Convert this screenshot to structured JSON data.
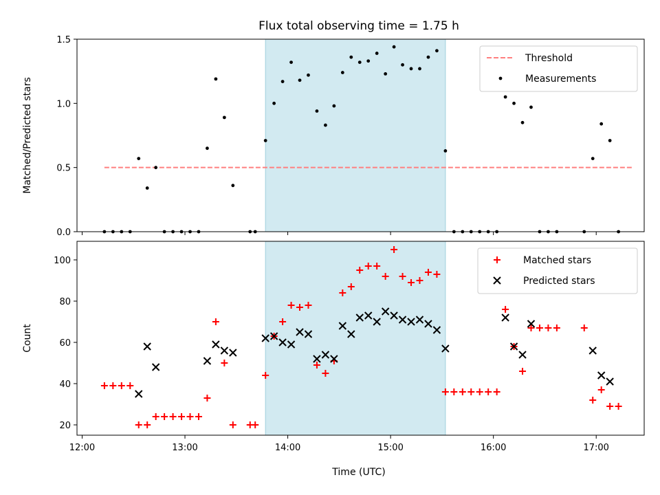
{
  "figure": {
    "title": "Flux total observing time = 1.75 h",
    "xlabel": "Time (UTC)",
    "background": "#ffffff",
    "shade_color": "#add8e6",
    "shade_span": [
      "13:47",
      "15:32"
    ],
    "xlim": [
      "11:57",
      "17:28"
    ],
    "xticks": [
      "12:00",
      "13:00",
      "14:00",
      "15:00",
      "16:00",
      "17:00"
    ]
  },
  "chart_data": [
    {
      "type": "scatter",
      "ylabel": "Matched/Predicted stars",
      "ylim": [
        0,
        1.5
      ],
      "yticks": [
        "0.0",
        "0.5",
        "1.0",
        "1.5"
      ],
      "legend_position": "top-right",
      "series": [
        {
          "name": "Threshold",
          "type": "line",
          "style": "dashed",
          "color": "#ff7f7f",
          "x": [
            "12:13",
            "17:21"
          ],
          "y": [
            0.5,
            0.5
          ]
        },
        {
          "name": "Measurements",
          "type": "scatter",
          "color": "#000000",
          "points": [
            [
              "12:13",
              0.0
            ],
            [
              "12:18",
              0.0
            ],
            [
              "12:23",
              0.0
            ],
            [
              "12:28",
              0.0
            ],
            [
              "12:33",
              0.57
            ],
            [
              "12:38",
              0.34
            ],
            [
              "12:43",
              0.5
            ],
            [
              "12:48",
              0.0
            ],
            [
              "12:53",
              0.0
            ],
            [
              "12:58",
              0.0
            ],
            [
              "13:03",
              0.0
            ],
            [
              "13:08",
              0.0
            ],
            [
              "13:13",
              0.65
            ],
            [
              "13:18",
              1.19
            ],
            [
              "13:23",
              0.89
            ],
            [
              "13:28",
              0.36
            ],
            [
              "13:38",
              0.0
            ],
            [
              "13:41",
              0.0
            ],
            [
              "13:47",
              0.71
            ],
            [
              "13:52",
              1.0
            ],
            [
              "13:57",
              1.17
            ],
            [
              "14:02",
              1.32
            ],
            [
              "14:07",
              1.18
            ],
            [
              "14:12",
              1.22
            ],
            [
              "14:17",
              0.94
            ],
            [
              "14:22",
              0.83
            ],
            [
              "14:27",
              0.98
            ],
            [
              "14:32",
              1.24
            ],
            [
              "14:37",
              1.36
            ],
            [
              "14:42",
              1.32
            ],
            [
              "14:47",
              1.33
            ],
            [
              "14:52",
              1.39
            ],
            [
              "14:57",
              1.23
            ],
            [
              "15:02",
              1.44
            ],
            [
              "15:07",
              1.3
            ],
            [
              "15:12",
              1.27
            ],
            [
              "15:17",
              1.27
            ],
            [
              "15:22",
              1.36
            ],
            [
              "15:27",
              1.41
            ],
            [
              "15:32",
              0.63
            ],
            [
              "15:37",
              0.0
            ],
            [
              "15:42",
              0.0
            ],
            [
              "15:47",
              0.0
            ],
            [
              "15:52",
              0.0
            ],
            [
              "15:57",
              0.0
            ],
            [
              "16:02",
              0.0
            ],
            [
              "16:07",
              1.05
            ],
            [
              "16:12",
              1.0
            ],
            [
              "16:17",
              0.85
            ],
            [
              "16:22",
              0.97
            ],
            [
              "16:27",
              0.0
            ],
            [
              "16:32",
              0.0
            ],
            [
              "16:37",
              0.0
            ],
            [
              "16:53",
              0.0
            ],
            [
              "16:58",
              0.57
            ],
            [
              "17:03",
              0.84
            ],
            [
              "17:08",
              0.71
            ],
            [
              "17:13",
              0.0
            ]
          ]
        }
      ]
    },
    {
      "type": "scatter",
      "ylabel": "Count",
      "ylim": [
        15,
        109
      ],
      "yticks": [
        "20",
        "40",
        "60",
        "80",
        "100"
      ],
      "legend_position": "top-right",
      "series": [
        {
          "name": "Matched stars",
          "marker": "plus",
          "color": "#ff0000",
          "points": [
            [
              "12:13",
              39
            ],
            [
              "12:18",
              39
            ],
            [
              "12:23",
              39
            ],
            [
              "12:28",
              39
            ],
            [
              "12:33",
              20
            ],
            [
              "12:38",
              20
            ],
            [
              "12:43",
              24
            ],
            [
              "12:48",
              24
            ],
            [
              "12:53",
              24
            ],
            [
              "12:58",
              24
            ],
            [
              "13:03",
              24
            ],
            [
              "13:08",
              24
            ],
            [
              "13:13",
              33
            ],
            [
              "13:18",
              70
            ],
            [
              "13:23",
              50
            ],
            [
              "13:28",
              20
            ],
            [
              "13:38",
              20
            ],
            [
              "13:41",
              20
            ],
            [
              "13:47",
              44
            ],
            [
              "13:52",
              63
            ],
            [
              "13:57",
              70
            ],
            [
              "14:02",
              78
            ],
            [
              "14:07",
              77
            ],
            [
              "14:12",
              78
            ],
            [
              "14:17",
              49
            ],
            [
              "14:22",
              45
            ],
            [
              "14:27",
              51
            ],
            [
              "14:32",
              84
            ],
            [
              "14:37",
              87
            ],
            [
              "14:42",
              95
            ],
            [
              "14:47",
              97
            ],
            [
              "14:52",
              97
            ],
            [
              "14:57",
              92
            ],
            [
              "15:02",
              105
            ],
            [
              "15:07",
              92
            ],
            [
              "15:12",
              89
            ],
            [
              "15:17",
              90
            ],
            [
              "15:22",
              94
            ],
            [
              "15:27",
              93
            ],
            [
              "15:32",
              36
            ],
            [
              "15:37",
              36
            ],
            [
              "15:42",
              36
            ],
            [
              "15:47",
              36
            ],
            [
              "15:52",
              36
            ],
            [
              "15:57",
              36
            ],
            [
              "16:02",
              36
            ],
            [
              "16:07",
              76
            ],
            [
              "16:12",
              58
            ],
            [
              "16:17",
              46
            ],
            [
              "16:22",
              67
            ],
            [
              "16:27",
              67
            ],
            [
              "16:32",
              67
            ],
            [
              "16:37",
              67
            ],
            [
              "16:53",
              67
            ],
            [
              "16:58",
              32
            ],
            [
              "17:03",
              37
            ],
            [
              "17:08",
              29
            ],
            [
              "17:13",
              29
            ]
          ]
        },
        {
          "name": "Predicted stars",
          "marker": "x",
          "color": "#000000",
          "points": [
            [
              "12:33",
              35
            ],
            [
              "12:38",
              58
            ],
            [
              "12:43",
              48
            ],
            [
              "13:13",
              51
            ],
            [
              "13:18",
              59
            ],
            [
              "13:23",
              56
            ],
            [
              "13:28",
              55
            ],
            [
              "13:47",
              62
            ],
            [
              "13:52",
              63
            ],
            [
              "13:57",
              60
            ],
            [
              "14:02",
              59
            ],
            [
              "14:07",
              65
            ],
            [
              "14:12",
              64
            ],
            [
              "14:17",
              52
            ],
            [
              "14:22",
              54
            ],
            [
              "14:27",
              52
            ],
            [
              "14:32",
              68
            ],
            [
              "14:37",
              64
            ],
            [
              "14:42",
              72
            ],
            [
              "14:47",
              73
            ],
            [
              "14:52",
              70
            ],
            [
              "14:57",
              75
            ],
            [
              "15:02",
              73
            ],
            [
              "15:07",
              71
            ],
            [
              "15:12",
              70
            ],
            [
              "15:17",
              71
            ],
            [
              "15:22",
              69
            ],
            [
              "15:27",
              66
            ],
            [
              "15:32",
              57
            ],
            [
              "16:07",
              72
            ],
            [
              "16:12",
              58
            ],
            [
              "16:17",
              54
            ],
            [
              "16:22",
              69
            ],
            [
              "16:58",
              56
            ],
            [
              "17:03",
              44
            ],
            [
              "17:08",
              41
            ]
          ]
        }
      ]
    }
  ]
}
